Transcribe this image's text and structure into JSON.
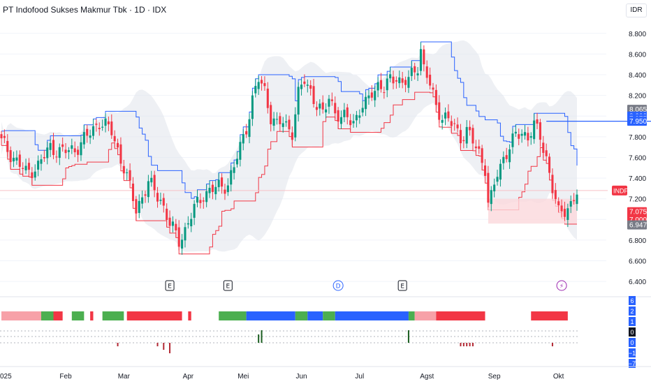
{
  "header": {
    "title": "PT Indofood Sukses Makmur Tbk · 1D · IDX",
    "currency": "IDR"
  },
  "chart_data": {
    "type": "candlestick",
    "title": "PT Indofood Sukses Makmur Tbk · 1D · IDX",
    "ticker": "INDF",
    "y_ticks": [
      6400,
      6600,
      6800,
      7000,
      7200,
      7400,
      7600,
      7800,
      8000,
      8200,
      8400,
      8600,
      8800
    ],
    "y_tick_labels": [
      "6.400",
      "6.600",
      "6.800",
      "7.000",
      "7.200",
      "7.400",
      "7.600",
      "7.800",
      "8.000",
      "8.200",
      "8.400",
      "8.600",
      "8.800"
    ],
    "ylim": [
      6320,
      8920
    ],
    "x_month_labels": [
      {
        "label": "025",
        "t": 0
      },
      {
        "label": "Feb",
        "t": 21
      },
      {
        "label": "Mar",
        "t": 40
      },
      {
        "label": "Apr",
        "t": 61
      },
      {
        "label": "Mei",
        "t": 79
      },
      {
        "label": "Jun",
        "t": 98
      },
      {
        "label": "Jul",
        "t": 117
      },
      {
        "label": "Agst",
        "t": 139
      },
      {
        "label": "Sep",
        "t": 161
      },
      {
        "label": "Okt",
        "t": 182
      }
    ],
    "n_bars": 189,
    "closes_keypoints": [
      [
        0,
        7750
      ],
      [
        4,
        7600
      ],
      [
        8,
        7450
      ],
      [
        12,
        7520
      ],
      [
        16,
        7700
      ],
      [
        20,
        7650
      ],
      [
        24,
        7680
      ],
      [
        28,
        7800
      ],
      [
        32,
        7950
      ],
      [
        36,
        7850
      ],
      [
        40,
        7500
      ],
      [
        42,
        7300
      ],
      [
        44,
        7100
      ],
      [
        48,
        7350
      ],
      [
        52,
        7200
      ],
      [
        55,
        6950
      ],
      [
        58,
        6800
      ],
      [
        60,
        6900
      ],
      [
        63,
        7100
      ],
      [
        66,
        7250
      ],
      [
        70,
        7300
      ],
      [
        74,
        7350
      ],
      [
        76,
        7500
      ],
      [
        78,
        7700
      ],
      [
        80,
        7900
      ],
      [
        82,
        8150
      ],
      [
        84,
        8350
      ],
      [
        86,
        8250
      ],
      [
        88,
        8000
      ],
      [
        90,
        7900
      ],
      [
        92,
        7950
      ],
      [
        95,
        7850
      ],
      [
        97,
        8200
      ],
      [
        99,
        8350
      ],
      [
        101,
        8250
      ],
      [
        103,
        8100
      ],
      [
        105,
        8000
      ],
      [
        107,
        8200
      ],
      [
        109,
        8050
      ],
      [
        111,
        7950
      ],
      [
        113,
        8000
      ],
      [
        115,
        7950
      ],
      [
        117,
        8050
      ],
      [
        119,
        8100
      ],
      [
        121,
        8250
      ],
      [
        123,
        8300
      ],
      [
        125,
        8250
      ],
      [
        127,
        8350
      ],
      [
        129,
        8400
      ],
      [
        131,
        8300
      ],
      [
        133,
        8350
      ],
      [
        135,
        8450
      ],
      [
        136,
        8500
      ],
      [
        137,
        8650
      ],
      [
        138,
        8450
      ],
      [
        140,
        8300
      ],
      [
        142,
        8100
      ],
      [
        144,
        8000
      ],
      [
        146,
        7950
      ],
      [
        148,
        7900
      ],
      [
        150,
        7800
      ],
      [
        152,
        7850
      ],
      [
        154,
        7750
      ],
      [
        156,
        7650
      ],
      [
        158,
        7500
      ],
      [
        159,
        7150
      ],
      [
        160,
        7200
      ],
      [
        162,
        7450
      ],
      [
        164,
        7600
      ],
      [
        166,
        7700
      ],
      [
        168,
        7800
      ],
      [
        170,
        7850
      ],
      [
        172,
        7800
      ],
      [
        174,
        7900
      ],
      [
        176,
        7800
      ],
      [
        178,
        7600
      ],
      [
        180,
        7300
      ],
      [
        182,
        7050
      ],
      [
        184,
        7100
      ],
      [
        186,
        7150
      ],
      [
        188,
        7250
      ]
    ],
    "price_labels": [
      {
        "text": "8.065",
        "value": 8065,
        "color": "#787b86"
      },
      {
        "text": "8.000",
        "value": 8000,
        "color": "#2962ff"
      },
      {
        "text": "7.975",
        "value": 7975,
        "color": "#2962ff"
      },
      {
        "text": "7.950",
        "value": 7950,
        "color": "#2962ff"
      },
      {
        "text": "7.075",
        "value": 7075,
        "color": "#f23645"
      },
      {
        "text": "7.000",
        "value": 7000,
        "color": "#f23645"
      },
      {
        "text": "6.947",
        "value": 6947,
        "color": "#787b86"
      }
    ],
    "events": [
      {
        "label": "E",
        "t": 55
      },
      {
        "label": "E",
        "t": 74
      },
      {
        "label": "D",
        "t": 110
      },
      {
        "label": "E",
        "t": 131
      },
      {
        "label": "⚡",
        "t": 183
      }
    ],
    "indicator_ticks": [
      "6",
      "2",
      "1",
      "0",
      "0",
      "−1",
      "−7"
    ],
    "colors": {
      "up": "#089981",
      "down": "#f23645",
      "upper_line": "#2962ff",
      "lower_line": "#f23645",
      "band": "#e0e3eb",
      "zone": "#fbd8dc",
      "axis_text": "#131722"
    }
  }
}
